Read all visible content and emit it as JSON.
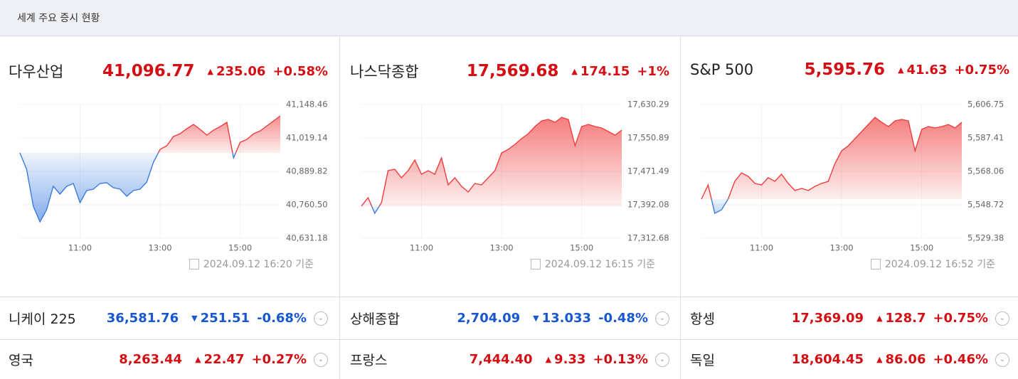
{
  "header": {
    "title": "세계 주요 증시 현황"
  },
  "panels": [
    {
      "name": "다우산업",
      "value": "41,096.77",
      "change": "235.06",
      "percent": "+0.58%",
      "direction": "up",
      "timestamp": "2024.09.12 16:20 기준",
      "chart_data": {
        "type": "line",
        "color_up": "#f03c3c",
        "color_down": "#3a7be0",
        "x": [
          "09:30",
          "09:40",
          "09:50",
          "10:00",
          "10:10",
          "10:20",
          "10:30",
          "10:40",
          "10:50",
          "11:00",
          "11:10",
          "11:20",
          "11:30",
          "11:40",
          "11:50",
          "12:00",
          "12:10",
          "12:20",
          "12:30",
          "12:40",
          "12:50",
          "13:00",
          "13:10",
          "13:20",
          "13:30",
          "13:40",
          "13:50",
          "14:00",
          "14:10",
          "14:20",
          "14:30",
          "14:40",
          "14:50",
          "15:00",
          "15:10",
          "15:20",
          "15:30",
          "15:40",
          "15:50",
          "16:00"
        ],
        "values": [
          40961.4,
          40898.1,
          40755.0,
          40694.5,
          40741.3,
          40832.1,
          40801.8,
          40832.1,
          40843.1,
          40768.8,
          40815.6,
          40821.1,
          40843.1,
          40845.8,
          40826.6,
          40821.1,
          40793.6,
          40815.6,
          40821.1,
          40848.6,
          40925.6,
          40975.2,
          40988.9,
          41024.7,
          41035.7,
          41054.9,
          41071.5,
          41052.2,
          41030.2,
          41049.4,
          41063.2,
          41079.7,
          40942.1,
          41002.7,
          41013.7,
          41035.7,
          41046.7,
          41066.0,
          41085.2,
          41104.5
        ],
        "xlim": [
          "09:30",
          "16:00"
        ],
        "xticks": [
          "11:00",
          "13:00",
          "15:00"
        ],
        "ylim": [
          40631.18,
          41148.46
        ],
        "yticks": [
          {
            "value": 40631.18,
            "label": "40,631.18"
          },
          {
            "value": 40760.5,
            "label": "40,760.50"
          },
          {
            "value": 40889.82,
            "label": "40,889.82"
          },
          {
            "value": 41019.14,
            "label": "41,019.14"
          },
          {
            "value": 41148.46,
            "label": "41,148.46"
          }
        ],
        "grid": true
      }
    },
    {
      "name": "나스닥종합",
      "value": "17,569.68",
      "change": "174.15",
      "percent": "+1%",
      "direction": "up",
      "timestamp": "2024.09.12 16:15 기준",
      "chart_data": {
        "type": "line",
        "color_up": "#f03c3c",
        "color_down": "#3a7be0",
        "x": [
          "09:30",
          "09:40",
          "09:50",
          "10:00",
          "10:10",
          "10:20",
          "10:30",
          "10:40",
          "10:50",
          "11:00",
          "11:10",
          "11:20",
          "11:30",
          "11:40",
          "11:50",
          "12:00",
          "12:10",
          "12:20",
          "12:30",
          "12:40",
          "12:50",
          "13:00",
          "13:10",
          "13:20",
          "13:30",
          "13:40",
          "13:50",
          "14:00",
          "14:10",
          "14:20",
          "14:30",
          "14:40",
          "14:50",
          "15:00",
          "15:10",
          "15:20",
          "15:30",
          "15:40",
          "15:50",
          "16:00"
        ],
        "values": [
          17388.7,
          17409.0,
          17371.8,
          17397.2,
          17473.2,
          17476.6,
          17456.3,
          17473.2,
          17498.5,
          17464.7,
          17473.2,
          17464.7,
          17503.6,
          17439.4,
          17456.3,
          17436.0,
          17422.5,
          17442.8,
          17439.4,
          17456.3,
          17473.2,
          17515.4,
          17523.9,
          17535.7,
          17549.2,
          17561.0,
          17577.9,
          17591.4,
          17594.8,
          17588.1,
          17599.9,
          17594.8,
          17532.3,
          17577.9,
          17583.0,
          17577.9,
          17574.5,
          17566.1,
          17557.7,
          17569.5
        ],
        "xlim": [
          "09:30",
          "16:00"
        ],
        "xticks": [
          "11:00",
          "13:00",
          "15:00"
        ],
        "ylim": [
          17312.68,
          17630.29
        ],
        "yticks": [
          {
            "value": 17312.68,
            "label": "17,312.68"
          },
          {
            "value": 17392.08,
            "label": "17,392.08"
          },
          {
            "value": 17471.49,
            "label": "17,471.49"
          },
          {
            "value": 17550.89,
            "label": "17,550.89"
          },
          {
            "value": 17630.29,
            "label": "17,630.29"
          }
        ],
        "grid": true
      }
    },
    {
      "name": "S&P 500",
      "value": "5,595.76",
      "change": "41.63",
      "percent": "+0.75%",
      "direction": "up",
      "timestamp": "2024.09.12 16:52 기준",
      "chart_data": {
        "type": "line",
        "color_up": "#f03c3c",
        "color_down": "#3a7be0",
        "x": [
          "09:30",
          "09:40",
          "09:50",
          "10:00",
          "10:10",
          "10:20",
          "10:30",
          "10:40",
          "10:50",
          "11:00",
          "11:10",
          "11:20",
          "11:30",
          "11:40",
          "11:50",
          "12:00",
          "12:10",
          "12:20",
          "12:30",
          "12:40",
          "12:50",
          "13:00",
          "13:10",
          "13:20",
          "13:30",
          "13:40",
          "13:50",
          "14:00",
          "14:10",
          "14:20",
          "14:30",
          "14:40",
          "14:50",
          "15:00",
          "15:10",
          "15:20",
          "15:30",
          "15:40",
          "15:50",
          "16:00"
        ],
        "values": [
          5552.0,
          5560.2,
          5543.8,
          5545.8,
          5552.0,
          5562.3,
          5567.2,
          5565.2,
          5561.1,
          5560.2,
          5564.4,
          5562.3,
          5566.4,
          5561.1,
          5557.0,
          5558.2,
          5557.0,
          5559.4,
          5561.1,
          5562.3,
          5572.6,
          5580.0,
          5582.9,
          5587.0,
          5591.1,
          5595.2,
          5599.3,
          5596.5,
          5594.0,
          5597.3,
          5598.1,
          5597.3,
          5580.0,
          5592.4,
          5594.0,
          5593.2,
          5594.0,
          5595.2,
          5593.2,
          5596.5
        ],
        "xlim": [
          "09:30",
          "16:00"
        ],
        "xticks": [
          "11:00",
          "13:00",
          "15:00"
        ],
        "ylim": [
          5529.38,
          5606.75
        ],
        "yticks": [
          {
            "value": 5529.38,
            "label": "5,529.38"
          },
          {
            "value": 5548.72,
            "label": "5,548.72"
          },
          {
            "value": 5568.06,
            "label": "5,568.06"
          },
          {
            "value": 5587.41,
            "label": "5,587.41"
          },
          {
            "value": 5606.75,
            "label": "5,606.75"
          }
        ],
        "grid": true
      }
    }
  ],
  "rows": [
    [
      {
        "name": "니케이 225",
        "value": "36,581.76",
        "change": "251.51",
        "percent": "-0.68%",
        "direction": "down"
      },
      {
        "name": "상해종합",
        "value": "2,704.09",
        "change": "13.033",
        "percent": "-0.48%",
        "direction": "down"
      },
      {
        "name": "항셍",
        "value": "17,369.09",
        "change": "128.7",
        "percent": "+0.75%",
        "direction": "up"
      }
    ],
    [
      {
        "name": "영국",
        "value": "8,263.44",
        "change": "22.47",
        "percent": "+0.27%",
        "direction": "up"
      },
      {
        "name": "프랑스",
        "value": "7,444.40",
        "change": "9.33",
        "percent": "+0.13%",
        "direction": "up"
      },
      {
        "name": "독일",
        "value": "18,604.45",
        "change": "86.06",
        "percent": "+0.46%",
        "direction": "up"
      }
    ]
  ]
}
